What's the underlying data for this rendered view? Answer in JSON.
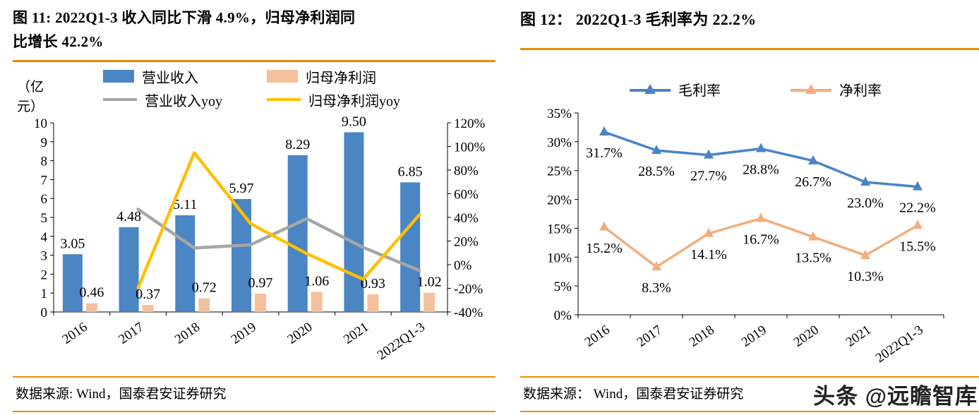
{
  "watermark": "头条 @远瞻智库",
  "colors": {
    "accent_rule": "#ED8B00",
    "bar_blue": "#4A85C4",
    "bar_salmon": "#F5C09D",
    "line_gray": "#A6A6A6",
    "line_yellow": "#FFC000",
    "line_blue": "#4A85C4",
    "line_salmon": "#F1AE7F"
  },
  "figure11": {
    "title_lines": [
      "图 11: 2022Q1-3 收入同比下滑 4.9%，归母净利润同",
      "比增长 42.2%"
    ],
    "unit_lines": [
      "（亿",
      "元）"
    ],
    "source": "数据来源: Wind，国泰君安证券研究"
  },
  "figure12": {
    "title": "图 12：  2022Q1-3 毛利率为 22.2%",
    "source": "数据来源： Wind，国泰君安证券研究"
  },
  "chart_data": [
    {
      "type": "bar",
      "title": "图 11: 2022Q1-3 收入同比下滑 4.9%，归母净利润同比增长 42.2%",
      "categories": [
        "2016",
        "2017",
        "2018",
        "2019",
        "2020",
        "2021",
        "2022Q1-3"
      ],
      "bar_series": [
        {
          "name": "营业收入",
          "color": "#4A85C4",
          "axis": "left",
          "values": [
            3.05,
            4.48,
            5.11,
            5.97,
            8.29,
            9.5,
            6.85
          ]
        },
        {
          "name": "归母净利润",
          "color": "#F5C09D",
          "axis": "left",
          "values": [
            0.46,
            0.37,
            0.72,
            0.97,
            1.06,
            0.93,
            1.02
          ]
        }
      ],
      "line_series": [
        {
          "name": "营业收入yoy",
          "color": "#A6A6A6",
          "axis": "right",
          "values": [
            null,
            46.9,
            14.1,
            16.8,
            38.9,
            14.6,
            -4.9
          ]
        },
        {
          "name": "归母净利润yoy",
          "color": "#FFC000",
          "axis": "right",
          "values": [
            null,
            -19.6,
            94.6,
            34.7,
            9.3,
            -12.3,
            42.2
          ]
        }
      ],
      "left_axis": {
        "label": "（亿元）",
        "min": 0,
        "max": 10,
        "step": 1
      },
      "right_axis": {
        "min": -40,
        "max": 120,
        "step": 20,
        "suffix": "%"
      },
      "grid": false,
      "legend_position": "top"
    },
    {
      "type": "line",
      "title": "图 12： 2022Q1-3 毛利率为 22.2%",
      "categories": [
        "2016",
        "2017",
        "2018",
        "2019",
        "2020",
        "2021",
        "2022Q1-3"
      ],
      "series": [
        {
          "name": "毛利率",
          "color": "#4A85C4",
          "marker": "triangle",
          "values": [
            31.7,
            28.5,
            27.7,
            28.8,
            26.7,
            23.0,
            22.2
          ]
        },
        {
          "name": "净利率",
          "color": "#F1AE7F",
          "marker": "triangle",
          "values": [
            15.2,
            8.3,
            14.1,
            16.7,
            13.5,
            10.3,
            15.5
          ]
        }
      ],
      "y_axis": {
        "min": 0,
        "max": 35,
        "step": 5,
        "suffix": "%"
      },
      "grid": false,
      "legend_position": "top"
    }
  ]
}
